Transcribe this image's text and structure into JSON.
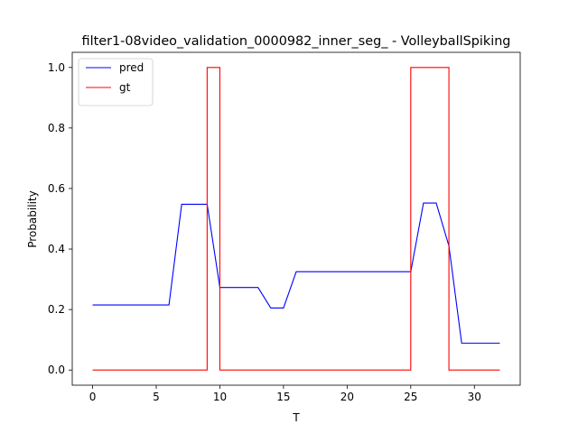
{
  "chart_data": {
    "type": "line",
    "title": "filter1-08video_validation_0000982_inner_seg_ - VolleyballSpiking",
    "xlabel": "T",
    "ylabel": "Probability",
    "xlim": [
      -1.6,
      33.6
    ],
    "ylim": [
      -0.05,
      1.05
    ],
    "xticks": [
      0,
      5,
      10,
      15,
      20,
      25,
      30
    ],
    "yticks": [
      0.0,
      0.2,
      0.4,
      0.6,
      0.8,
      1.0
    ],
    "xtick_labels": [
      "0",
      "5",
      "10",
      "15",
      "20",
      "25",
      "30"
    ],
    "ytick_labels": [
      "0.0",
      "0.2",
      "0.4",
      "0.6",
      "0.8",
      "1.0"
    ],
    "grid": false,
    "legend_position": "top-left",
    "series": [
      {
        "name": "pred",
        "color": "#0000ff",
        "step": false,
        "x": [
          0,
          1,
          2,
          3,
          4,
          5,
          6,
          7,
          8,
          9,
          10,
          11,
          12,
          13,
          14,
          15,
          16,
          17,
          18,
          19,
          20,
          21,
          22,
          23,
          24,
          25,
          26,
          27,
          28,
          29,
          30,
          31,
          32
        ],
        "y": [
          0.215,
          0.215,
          0.215,
          0.215,
          0.215,
          0.215,
          0.215,
          0.548,
          0.548,
          0.548,
          0.273,
          0.273,
          0.273,
          0.273,
          0.205,
          0.205,
          0.325,
          0.325,
          0.325,
          0.325,
          0.325,
          0.325,
          0.325,
          0.325,
          0.325,
          0.325,
          0.552,
          0.552,
          0.41,
          0.089,
          0.089,
          0.089,
          0.089
        ]
      },
      {
        "name": "gt",
        "color": "#ff0000",
        "step": true,
        "x": [
          0,
          1,
          2,
          3,
          4,
          5,
          6,
          7,
          8,
          9,
          10,
          11,
          12,
          13,
          14,
          15,
          16,
          17,
          18,
          19,
          20,
          21,
          22,
          23,
          24,
          25,
          26,
          27,
          28,
          29,
          30,
          31,
          32
        ],
        "y": [
          0,
          0,
          0,
          0,
          0,
          0,
          0,
          0,
          0,
          1,
          0,
          0,
          0,
          0,
          0,
          0,
          0,
          0,
          0,
          0,
          0,
          0,
          0,
          0,
          0,
          1,
          1,
          1,
          0,
          0,
          0,
          0,
          0
        ]
      }
    ]
  }
}
